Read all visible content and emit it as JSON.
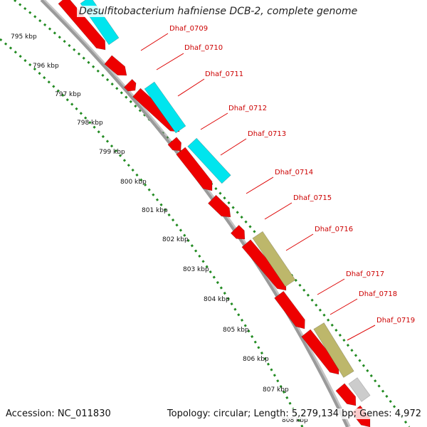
{
  "title": "Desulfitobacterium hafniense DCB-2, complete genome",
  "footer": {
    "accession": "Accession: NC_011830",
    "summary": "Topology: circular; Length: 5,279,134 bp; Genes: 4,972"
  },
  "colors": {
    "forward_gene": "#ee0000",
    "cyan_feature": "#00e5ee",
    "olive_feature": "#bdb76b",
    "grey_feature": "#cccccc",
    "backbone": "#808080",
    "ticks": "#228b22",
    "label_text": "#cc0000"
  },
  "kbp_ticks": [
    "795 kbp",
    "796 kbp",
    "797 kbp",
    "798 kbp",
    "799 kbp",
    "800 kbp",
    "801 kbp",
    "802 kbp",
    "803 kbp",
    "804 kbp",
    "805 kbp",
    "806 kbp",
    "807 kbp",
    "808 kbp"
  ],
  "gene_labels": [
    "Dhaf_0709",
    "Dhaf_0710",
    "Dhaf_0711",
    "Dhaf_0712",
    "Dhaf_0713",
    "Dhaf_0714",
    "Dhaf_0715",
    "Dhaf_0716",
    "Dhaf_0717",
    "Dhaf_0718",
    "Dhaf_0719"
  ]
}
